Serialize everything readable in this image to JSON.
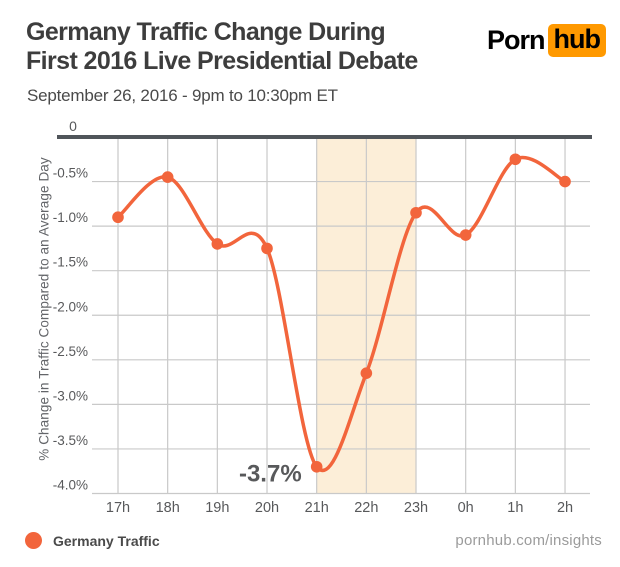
{
  "header": {
    "title_line1": "Germany Traffic Change During",
    "title_line2": "First 2016 Live Presidential Debate",
    "subtitle": "September 26, 2016 - 9pm to 10:30pm ET",
    "logo": {
      "part1": "Porn",
      "part2": "hub",
      "brand_orange": "#ff9900"
    }
  },
  "chart_data": {
    "type": "line",
    "title": "Germany Traffic Change During First 2016 Live Presidential Debate",
    "categories": [
      "17h",
      "18h",
      "19h",
      "20h",
      "21h",
      "22h",
      "23h",
      "0h",
      "1h",
      "2h"
    ],
    "series": [
      {
        "name": "Germany Traffic",
        "values": [
          -0.9,
          -0.45,
          -1.2,
          -1.25,
          -3.7,
          -2.65,
          -0.85,
          -1.1,
          -0.25,
          -0.5
        ]
      }
    ],
    "xlabel": "",
    "ylabel": "% Change in Traffic Compared to an Average Day",
    "ylim": [
      -4.0,
      0
    ],
    "y_ticks": [
      "0",
      "-0.5%",
      "-1.0%",
      "-1.5%",
      "-2.0%",
      "-2.5%",
      "-3.0%",
      "-3.5%",
      "-4.0%"
    ],
    "grid": true,
    "legend_position": "bottom-left",
    "highlight_band": {
      "from": "21h",
      "to": "23h",
      "color": "#fceed8"
    },
    "annotation": {
      "text": "-3.7%",
      "at_category": "21h",
      "value": -3.7
    },
    "line_color": "#f2653c",
    "grid_color": "#c9c9c9",
    "zero_line_color": "#50555a",
    "tick_color": "#58595b"
  },
  "legend": {
    "label": "Germany Traffic",
    "marker_color": "#f2653c"
  },
  "footer": {
    "site_label": "pornhub.com/insights"
  }
}
